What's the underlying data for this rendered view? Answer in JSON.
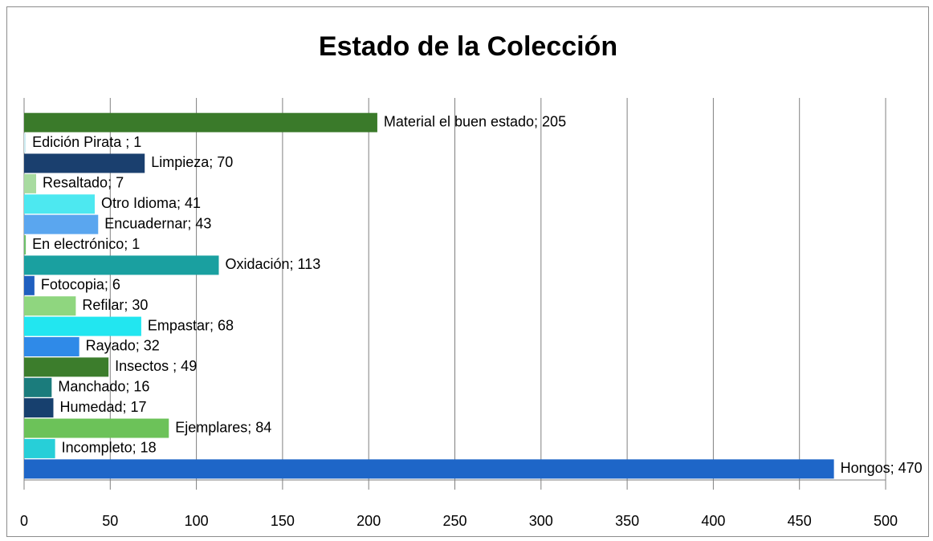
{
  "chart_data": {
    "type": "bar",
    "orientation": "horizontal",
    "title": "Estado de la Colección",
    "values": [
      205,
      1,
      70,
      7,
      41,
      43,
      1,
      113,
      6,
      30,
      68,
      32,
      49,
      16,
      17,
      84,
      18,
      470
    ],
    "value_labels": [
      "Material el buen estado; 205",
      "Edición Pirata ; 1",
      "Limpieza; 70",
      "Resaltado; 7",
      "Otro Idioma; 41",
      "Encuadernar; 43",
      "En electrónico; 1",
      "Oxidación; 113",
      "Fotocopia; 6",
      "Refilar; 30",
      "Empastar; 68",
      "Rayado; 32",
      "Insectos ; 49",
      "Manchado; 16",
      "Humedad; 17",
      "Ejemplares; 84",
      "Incompleto; 18",
      "Hongos; 470"
    ],
    "colors": [
      "#3a7a2a",
      "#cfeef3",
      "#1a3f6e",
      "#a8dba0",
      "#4de8f0",
      "#5aa6ef",
      "#6cc06a",
      "#1aa0a0",
      "#1f5fbf",
      "#8fd67f",
      "#22e6f0",
      "#2f8ae8",
      "#3c7d2c",
      "#1b7c7c",
      "#17406e",
      "#6cc259",
      "#27cfd8",
      "#1e66c8"
    ],
    "xlim": [
      0,
      500
    ],
    "xticks": [
      0,
      50,
      100,
      150,
      200,
      250,
      300,
      350,
      400,
      450,
      500
    ],
    "grid": true
  }
}
